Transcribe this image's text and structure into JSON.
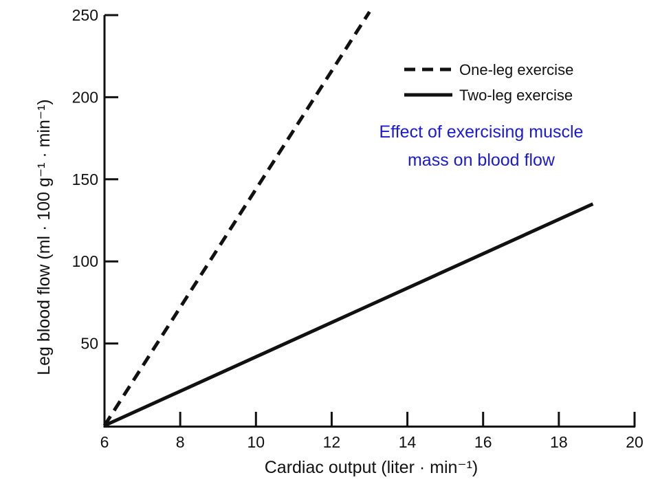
{
  "chart_data": {
    "type": "line",
    "xlabel": "Cardiac output (liter · min⁻¹)",
    "ylabel": "Leg blood flow (ml · 100 g⁻¹ · min⁻¹)",
    "xlim": [
      6,
      20
    ],
    "ylim": [
      0,
      250
    ],
    "x_ticks": [
      6,
      8,
      10,
      12,
      14,
      16,
      18,
      20
    ],
    "y_ticks": [
      50,
      100,
      150,
      200,
      250
    ],
    "grid": false,
    "legend_position": "top-right",
    "series": [
      {
        "name": "One-leg exercise",
        "style": "dashed",
        "x": [
          6,
          13
        ],
        "y": [
          0,
          252
        ]
      },
      {
        "name": "Two-leg exercise",
        "style": "solid",
        "x": [
          6,
          18.9
        ],
        "y": [
          0,
          135
        ]
      }
    ],
    "annotation": {
      "lines": [
        "Effect of exercising muscle",
        "mass on blood flow"
      ],
      "color": "#1a1ad6"
    },
    "colors": {
      "line": "#111111",
      "axis": "#111111"
    }
  }
}
